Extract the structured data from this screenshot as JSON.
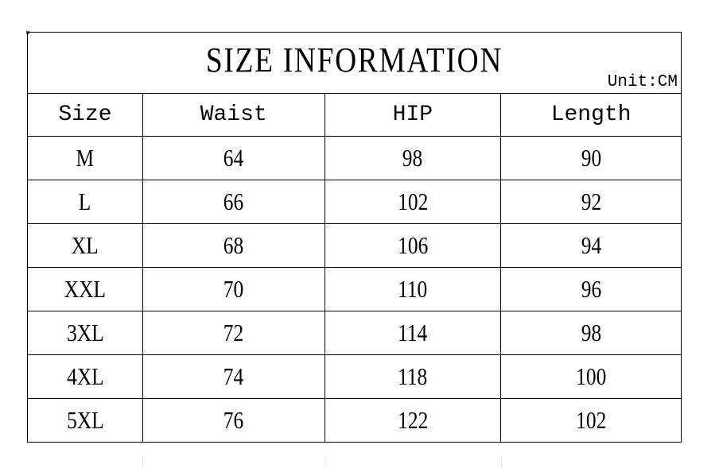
{
  "title": "SIZE INFORMATION",
  "unit": "Unit:CM",
  "headers": [
    "Size",
    "Waist",
    "HIP",
    "Length"
  ],
  "rows": [
    [
      "M",
      "64",
      "98",
      "90"
    ],
    [
      "L",
      "66",
      "102",
      "92"
    ],
    [
      "XL",
      "68",
      "106",
      "94"
    ],
    [
      "XXL",
      "70",
      "110",
      "96"
    ],
    [
      "3XL",
      "72",
      "114",
      "98"
    ],
    [
      "4XL",
      "74",
      "118",
      "100"
    ],
    [
      "5XL",
      "76",
      "122",
      "102"
    ]
  ]
}
